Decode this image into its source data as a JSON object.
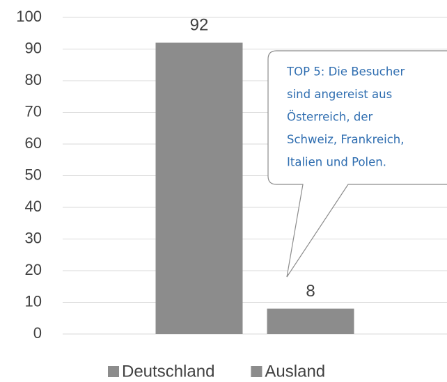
{
  "chart_data": {
    "type": "bar",
    "series": [
      {
        "name": "Deutschland",
        "color": "#8c8c8c",
        "values": [
          92
        ]
      },
      {
        "name": "Ausland",
        "color": "#8c8c8c",
        "values": [
          8
        ]
      }
    ],
    "ylim": [
      0,
      100
    ],
    "yticks": [
      0,
      10,
      20,
      30,
      40,
      50,
      60,
      70,
      80,
      90,
      100
    ],
    "grid": true,
    "legend": "bottom",
    "annotation": [
      "TOP 5: Die Besucher",
      "sind angereist aus",
      "Österreich, der",
      "Schweiz, Frankreich,",
      "Italien und Polen."
    ]
  }
}
